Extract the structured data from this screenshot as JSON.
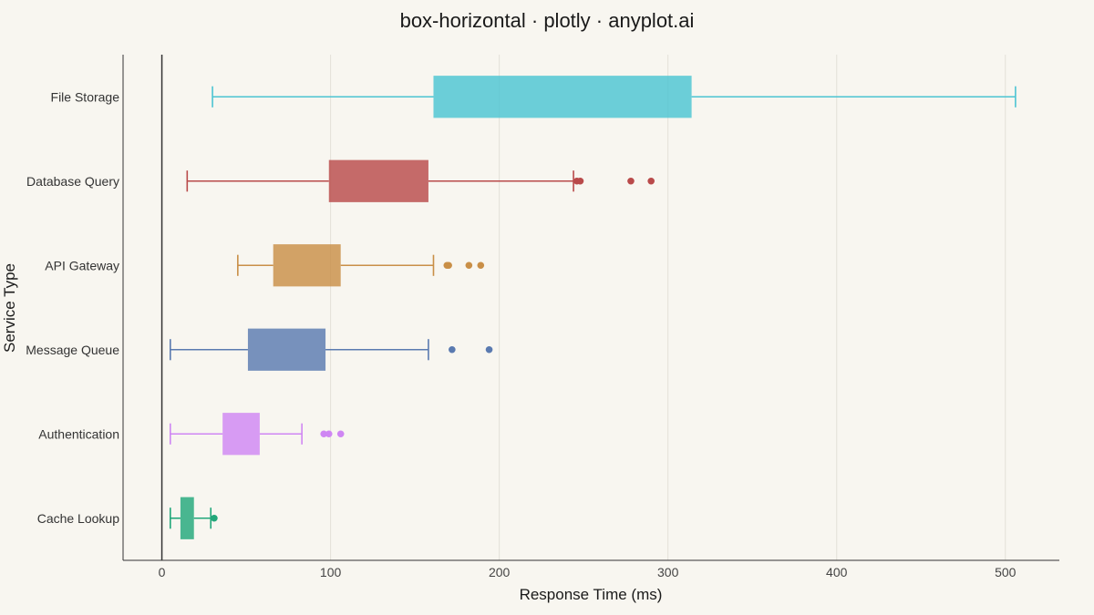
{
  "chart_data": {
    "type": "box",
    "orientation": "horizontal",
    "title": "box-horizontal · plotly · anyplot.ai",
    "xlabel": "Response Time (ms)",
    "ylabel": "Service Type",
    "xlim": [
      -23,
      532
    ],
    "xticks": [
      0,
      100,
      200,
      300,
      400,
      500
    ],
    "grid": true,
    "legend": "none",
    "categories": [
      "File Storage",
      "Database Query",
      "API Gateway",
      "Message Queue",
      "Authentication",
      "Cache Lookup"
    ],
    "series": [
      {
        "category": "File Storage",
        "color": "#4cc4d2",
        "whisker_low": 30,
        "q1": 161,
        "q3": 314,
        "whisker_high": 506,
        "outliers": []
      },
      {
        "category": "Database Query",
        "color": "#b94a4a",
        "whisker_low": 15,
        "q1": 99,
        "q3": 158,
        "whisker_high": 244,
        "outliers": [
          246,
          248,
          278,
          290
        ]
      },
      {
        "category": "API Gateway",
        "color": "#c98f47",
        "whisker_low": 45,
        "q1": 66,
        "q3": 106,
        "whisker_high": 161,
        "outliers": [
          169,
          170,
          182,
          189
        ]
      },
      {
        "category": "Message Queue",
        "color": "#5a7ab0",
        "whisker_low": 5,
        "q1": 51,
        "q3": 97,
        "whisker_high": 158,
        "outliers": [
          172,
          194
        ]
      },
      {
        "category": "Authentication",
        "color": "#cf86f3",
        "whisker_low": 5,
        "q1": 36,
        "q3": 58,
        "whisker_high": 83,
        "outliers": [
          96,
          99,
          106
        ]
      },
      {
        "category": "Cache Lookup",
        "color": "#22a77a",
        "whisker_low": 5,
        "q1": 11,
        "q3": 19,
        "whisker_high": 29,
        "outliers": [
          31
        ]
      }
    ]
  }
}
